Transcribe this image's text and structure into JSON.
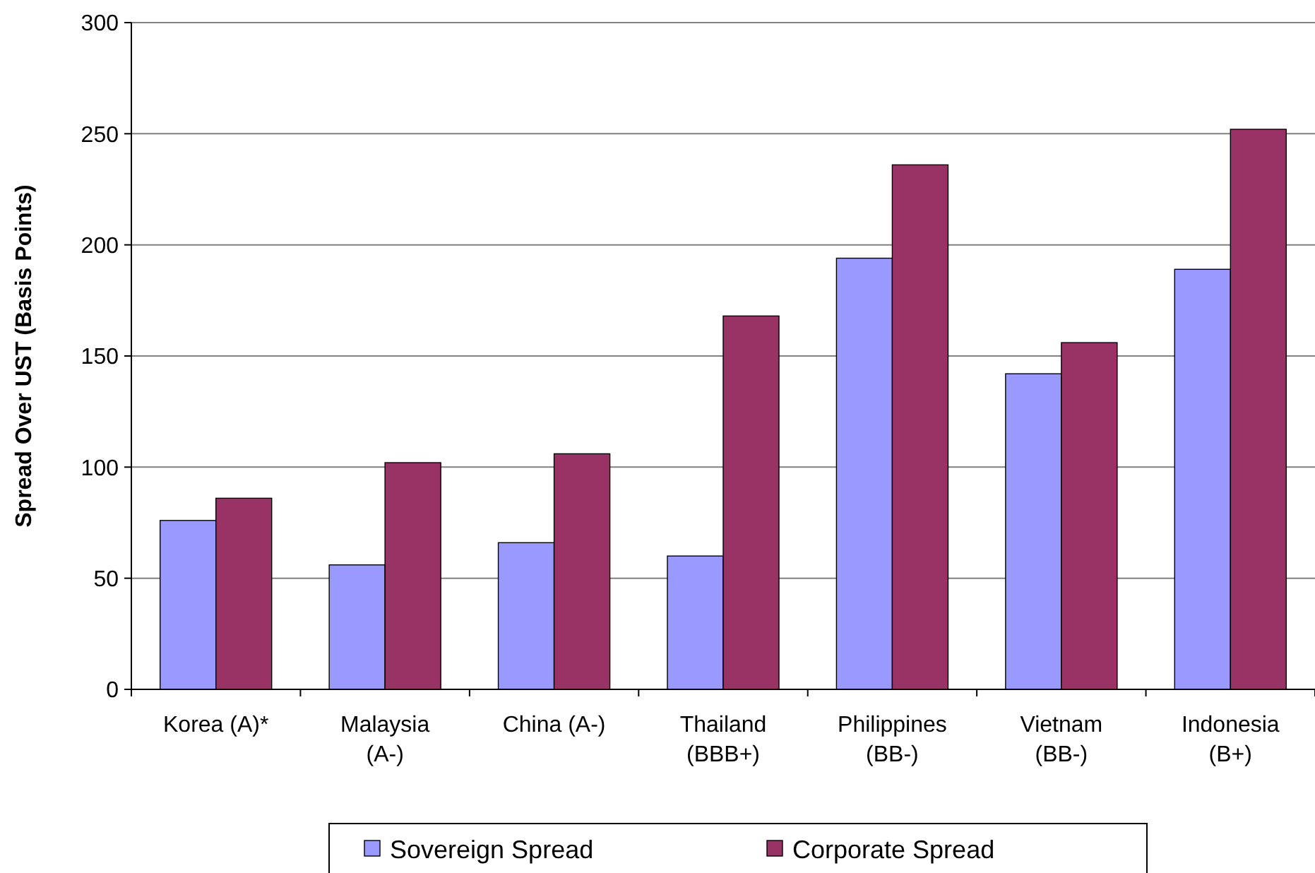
{
  "chart_data": {
    "type": "bar",
    "ylabel": "Spread Over UST (Basis Points)",
    "categories": [
      "Korea (A)*",
      "Malaysia (A-)",
      "China (A-)",
      "Thailand (BBB+)",
      "Philippines (BB-)",
      "Vietnam (BB-)",
      "Indonesia (B+)"
    ],
    "series": [
      {
        "name": "Sovereign Spread",
        "color": "#9999ff",
        "values": [
          76,
          56,
          66,
          60,
          194,
          142,
          189
        ]
      },
      {
        "name": "Corporate Spread",
        "color": "#993366",
        "values": [
          86,
          102,
          106,
          168,
          236,
          156,
          252
        ]
      }
    ],
    "ylim": [
      0,
      300
    ],
    "yticks": [
      0,
      50,
      100,
      150,
      200,
      250,
      300
    ],
    "grid": "y",
    "legend": "bottom"
  }
}
